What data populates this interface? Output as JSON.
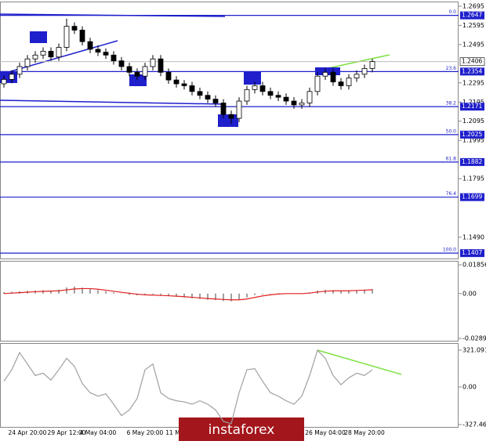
{
  "chart_data": [
    {
      "type": "candlestick",
      "categories": [
        null,
        null,
        null,
        "24 Apr 20:00",
        null,
        null,
        null,
        null,
        "29 Apr 12:00",
        null,
        null,
        null,
        "4 May 04:00",
        null,
        null,
        null,
        null,
        null,
        "6 May 20:00",
        null,
        null,
        null,
        "11 May",
        null,
        null,
        null,
        null,
        null,
        null,
        null,
        null,
        null,
        null,
        null,
        null,
        null,
        null,
        null,
        null,
        null,
        null,
        "26 May 04:00",
        null,
        null,
        null,
        null,
        "28 May 20:00",
        null
      ],
      "open": [
        1.229,
        1.2313,
        1.234,
        1.238,
        1.242,
        1.244,
        1.246,
        1.243,
        1.248,
        1.259,
        1.257,
        1.251,
        1.247,
        1.2455,
        1.244,
        1.241,
        1.238,
        1.235,
        1.233,
        1.238,
        1.242,
        1.235,
        1.231,
        1.229,
        1.228,
        1.225,
        1.223,
        1.221,
        1.219,
        1.213,
        1.211,
        1.22,
        1.226,
        1.228,
        1.225,
        1.223,
        1.222,
        1.22,
        1.218,
        1.219,
        1.225,
        1.233,
        1.235,
        1.23,
        1.228,
        1.232,
        1.234,
        1.237
      ],
      "high": [
        1.2333,
        1.236,
        1.24,
        1.244,
        1.246,
        1.248,
        1.248,
        1.25,
        1.263,
        1.261,
        1.259,
        1.253,
        1.249,
        1.2475,
        1.246,
        1.243,
        1.24,
        1.237,
        1.24,
        1.244,
        1.244,
        1.237,
        1.233,
        1.231,
        1.23,
        1.227,
        1.225,
        1.223,
        1.221,
        1.215,
        1.222,
        1.228,
        1.23,
        1.23,
        1.227,
        1.225,
        1.224,
        1.222,
        1.221,
        1.227,
        1.235,
        1.237,
        1.237,
        1.232,
        1.234,
        1.236,
        1.239,
        1.242
      ],
      "low": [
        1.227,
        1.2293,
        1.232,
        1.236,
        1.24,
        1.242,
        1.241,
        1.241,
        1.246,
        1.255,
        1.249,
        1.245,
        1.2435,
        1.242,
        1.239,
        1.236,
        1.233,
        1.231,
        1.231,
        1.236,
        1.233,
        1.229,
        1.227,
        1.226,
        1.223,
        1.221,
        1.219,
        1.217,
        1.211,
        1.208,
        1.209,
        1.218,
        1.224,
        1.223,
        1.221,
        1.22,
        1.218,
        1.216,
        1.216,
        1.217,
        1.223,
        1.231,
        1.228,
        1.226,
        1.226,
        1.23,
        1.232,
        1.235
      ],
      "close": [
        1.2313,
        1.234,
        1.238,
        1.242,
        1.244,
        1.246,
        1.243,
        1.248,
        1.259,
        1.257,
        1.251,
        1.247,
        1.2455,
        1.244,
        1.241,
        1.238,
        1.235,
        1.233,
        1.238,
        1.242,
        1.235,
        1.231,
        1.229,
        1.228,
        1.225,
        1.223,
        1.221,
        1.219,
        1.213,
        1.211,
        1.22,
        1.226,
        1.228,
        1.225,
        1.223,
        1.222,
        1.22,
        1.218,
        1.219,
        1.225,
        1.233,
        1.235,
        1.23,
        1.228,
        1.232,
        1.234,
        1.237,
        1.2406
      ],
      "up_color": "#ffffff",
      "down_color": "#000000",
      "ylim": [
        1.1379,
        1.2719
      ],
      "yticks": [
        1.2695,
        1.2595,
        1.2495,
        1.2295,
        1.2195,
        1.2095,
        1.1995,
        1.1795,
        {
          "value": 1.149,
          "label": "1.1490"
        }
      ],
      "levels": [
        {
          "value": 1.2647,
          "label": "0.0"
        },
        {
          "value": 1.2354,
          "label": "23.6"
        },
        {
          "value": 1.2171,
          "label": "38.2"
        },
        {
          "value": 1.2025,
          "label": "50.0"
        },
        {
          "value": 1.1882,
          "label": "61.8"
        },
        {
          "value": 1.1699,
          "label": "76.4"
        },
        {
          "value": 1.1407,
          "label": "100.0"
        }
      ],
      "level_color": "#1f1fcc",
      "last_price": 1.2406,
      "watermark": "instaforex"
    },
    {
      "type": "macd",
      "histogram": [
        0.001,
        0.0012,
        0.0015,
        0.0018,
        0.002,
        0.0022,
        0.002,
        0.0025,
        0.004,
        0.0045,
        0.0038,
        0.003,
        0.0022,
        0.0015,
        0.0008,
        0.0,
        -0.0008,
        -0.0012,
        -0.001,
        -0.0005,
        -0.001,
        -0.0015,
        -0.002,
        -0.0025,
        -0.003,
        -0.0035,
        -0.004,
        -0.0042,
        -0.0048,
        -0.005,
        -0.004,
        -0.0025,
        -0.001,
        -0.0005,
        0.0,
        0.0002,
        0.0,
        -0.0002,
        0.0,
        0.0008,
        0.002,
        0.0025,
        0.0022,
        0.0018,
        0.002,
        0.0022,
        0.0025,
        0.003
      ],
      "signal": [
        0.0,
        0.0003,
        0.0006,
        0.0009,
        0.0012,
        0.0014,
        0.0016,
        0.0018,
        0.0024,
        0.003,
        0.0032,
        0.0032,
        0.0028,
        0.0022,
        0.0015,
        0.0008,
        0.0002,
        -0.0004,
        -0.0008,
        -0.001,
        -0.0012,
        -0.0014,
        -0.0017,
        -0.002,
        -0.0024,
        -0.0028,
        -0.0032,
        -0.0035,
        -0.0038,
        -0.004,
        -0.004,
        -0.0035,
        -0.0025,
        -0.0015,
        -0.0008,
        -0.0003,
        0.0,
        0.0,
        0.0,
        0.0003,
        0.001,
        0.0015,
        0.0018,
        0.0018,
        0.0018,
        0.002,
        0.0022,
        0.0025
      ],
      "hist_color": "#a0a0a0",
      "signal_color": "#e02020",
      "ylim": [
        -0.0304,
        0.0211
      ],
      "yticks": [
        0.01856,
        {
          "value": 0,
          "label": "0.00"
        },
        -0.02892
      ]
    },
    {
      "type": "line",
      "values": [
        50,
        150,
        300,
        200,
        100,
        120,
        60,
        150,
        250,
        180,
        30,
        -50,
        -80,
        -60,
        -150,
        -250,
        -200,
        -100,
        150,
        200,
        -50,
        -100,
        -120,
        -130,
        -150,
        -120,
        -150,
        -200,
        -300,
        -320,
        -50,
        150,
        160,
        50,
        -50,
        -80,
        -120,
        -150,
        -80,
        100,
        320,
        250,
        100,
        20,
        80,
        120,
        100,
        150
      ],
      "color": "#a0a0a0",
      "ylim": [
        -347.9,
        382.5
      ],
      "yticks": [
        321.0916,
        {
          "value": 0,
          "label": "0.00"
        },
        -327.463
      ]
    }
  ]
}
